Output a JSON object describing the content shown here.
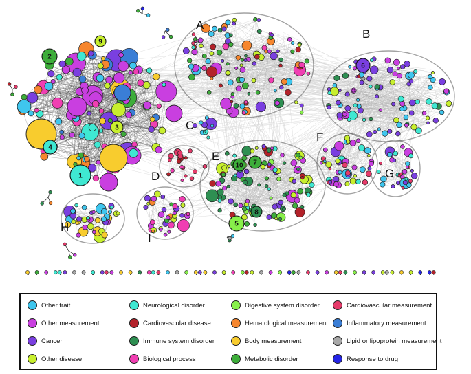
{
  "categories": {
    "other_trait": {
      "label": "Other trait",
      "color": "#3fc6ee"
    },
    "other_measurement": {
      "label": "Other measurement",
      "color": "#c93fe0"
    },
    "cancer": {
      "label": "Cancer",
      "color": "#7a3fe0"
    },
    "other_disease": {
      "label": "Other disease",
      "color": "#c8ef2e"
    },
    "neurological": {
      "label": "Neurological disorder",
      "color": "#3fe8d2"
    },
    "cardiovascular": {
      "label": "Cardiovascular disease",
      "color": "#b3222a"
    },
    "immune": {
      "label": "Immune system disorder",
      "color": "#2e8f52"
    },
    "biological": {
      "label": "Biological process",
      "color": "#f03fb2"
    },
    "digestive": {
      "label": "Digestive system disorder",
      "color": "#88f04a"
    },
    "hematological": {
      "label": "Hematological measurement",
      "color": "#f6862e"
    },
    "body": {
      "label": "Body measurement",
      "color": "#f8cc2e"
    },
    "metabolic": {
      "label": "Metabolic disorder",
      "color": "#3dad3a"
    },
    "cardio_measure": {
      "label": "Cardiovascular measurement",
      "color": "#e63a6a"
    },
    "inflammatory": {
      "label": "Inflammatory measurement",
      "color": "#3a7ed6"
    },
    "lipid": {
      "label": "Lipid or lipoprotein measurement",
      "color": "#a8a8a8"
    },
    "drug": {
      "label": "Response to drug",
      "color": "#2424e6"
    }
  },
  "legend_order": [
    "other_trait",
    "other_measurement",
    "cancer",
    "other_disease",
    "neurological",
    "cardiovascular",
    "immune",
    "biological",
    "digestive",
    "hematological",
    "body",
    "metabolic",
    "cardio_measure",
    "inflammatory",
    "lipid",
    "drug"
  ],
  "cluster_labels": [
    "A",
    "B",
    "C",
    "D",
    "E",
    "F",
    "G",
    "H",
    "I"
  ],
  "node_numbers": [
    "1",
    "2",
    "3",
    "4",
    "5",
    "6",
    "7",
    "8",
    "9",
    "10"
  ]
}
